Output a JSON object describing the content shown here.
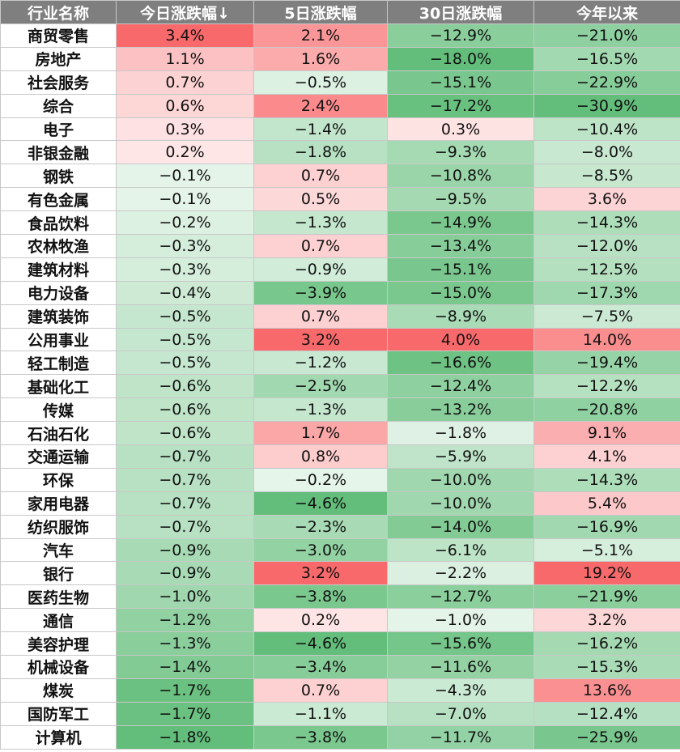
{
  "chart_data": {
    "type": "table",
    "columns": [
      "行业名称",
      "今日涨跌幅↓",
      "5日涨跌幅",
      "30日涨跌幅",
      "今年以来"
    ],
    "rows": [
      {
        "name": "商贸零售",
        "values": [
          "3.4%",
          "2.1%",
          "−12.9%",
          "−21.0%"
        ]
      },
      {
        "name": "房地产",
        "values": [
          "1.1%",
          "1.6%",
          "−18.0%",
          "−16.5%"
        ]
      },
      {
        "name": "社会服务",
        "values": [
          "0.7%",
          "−0.5%",
          "−15.1%",
          "−22.9%"
        ]
      },
      {
        "name": "综合",
        "values": [
          "0.6%",
          "2.4%",
          "−17.2%",
          "−30.9%"
        ]
      },
      {
        "name": "电子",
        "values": [
          "0.3%",
          "−1.4%",
          "0.3%",
          "−10.4%"
        ]
      },
      {
        "name": "非银金融",
        "values": [
          "0.2%",
          "−1.8%",
          "−9.3%",
          "−8.0%"
        ]
      },
      {
        "name": "钢铁",
        "values": [
          "−0.1%",
          "0.7%",
          "−10.8%",
          "−8.5%"
        ]
      },
      {
        "name": "有色金属",
        "values": [
          "−0.1%",
          "0.5%",
          "−9.5%",
          "3.6%"
        ]
      },
      {
        "name": "食品饮料",
        "values": [
          "−0.2%",
          "−1.3%",
          "−14.9%",
          "−14.3%"
        ]
      },
      {
        "name": "农林牧渔",
        "values": [
          "−0.3%",
          "0.7%",
          "−13.4%",
          "−12.0%"
        ]
      },
      {
        "name": "建筑材料",
        "values": [
          "−0.3%",
          "−0.9%",
          "−15.1%",
          "−12.5%"
        ]
      },
      {
        "name": "电力设备",
        "values": [
          "−0.4%",
          "−3.9%",
          "−15.0%",
          "−17.3%"
        ]
      },
      {
        "name": "建筑装饰",
        "values": [
          "−0.5%",
          "0.7%",
          "−8.9%",
          "−7.5%"
        ]
      },
      {
        "name": "公用事业",
        "values": [
          "−0.5%",
          "3.2%",
          "4.0%",
          "14.0%"
        ]
      },
      {
        "name": "轻工制造",
        "values": [
          "−0.5%",
          "−1.2%",
          "−16.6%",
          "−19.4%"
        ]
      },
      {
        "name": "基础化工",
        "values": [
          "−0.6%",
          "−2.5%",
          "−12.4%",
          "−12.2%"
        ]
      },
      {
        "name": "传媒",
        "values": [
          "−0.6%",
          "−1.3%",
          "−13.2%",
          "−20.8%"
        ]
      },
      {
        "name": "石油石化",
        "values": [
          "−0.6%",
          "1.7%",
          "−1.8%",
          "9.1%"
        ]
      },
      {
        "name": "交通运输",
        "values": [
          "−0.7%",
          "0.8%",
          "−5.9%",
          "4.1%"
        ]
      },
      {
        "name": "环保",
        "values": [
          "−0.7%",
          "−0.2%",
          "−10.0%",
          "−14.3%"
        ]
      },
      {
        "name": "家用电器",
        "values": [
          "−0.7%",
          "−4.6%",
          "−10.0%",
          "5.4%"
        ]
      },
      {
        "name": "纺织服饰",
        "values": [
          "−0.7%",
          "−2.3%",
          "−14.0%",
          "−16.9%"
        ]
      },
      {
        "name": "汽车",
        "values": [
          "−0.9%",
          "−3.0%",
          "−6.1%",
          "−5.1%"
        ]
      },
      {
        "name": "银行",
        "values": [
          "−0.9%",
          "3.2%",
          "−2.2%",
          "19.2%"
        ]
      },
      {
        "name": "医药生物",
        "values": [
          "−1.0%",
          "−3.8%",
          "−12.7%",
          "−21.9%"
        ]
      },
      {
        "name": "通信",
        "values": [
          "−1.2%",
          "0.2%",
          "−1.0%",
          "3.2%"
        ]
      },
      {
        "name": "美容护理",
        "values": [
          "−1.3%",
          "−4.6%",
          "−15.6%",
          "−16.2%"
        ]
      },
      {
        "name": "机械设备",
        "values": [
          "−1.4%",
          "−3.4%",
          "−11.6%",
          "−15.3%"
        ]
      },
      {
        "name": "煤炭",
        "values": [
          "−1.7%",
          "0.7%",
          "−4.3%",
          "13.6%"
        ]
      },
      {
        "name": "国防军工",
        "values": [
          "−1.7%",
          "−1.1%",
          "−7.0%",
          "−12.4%"
        ]
      },
      {
        "name": "计算机",
        "values": [
          "−1.8%",
          "−3.8%",
          "−11.7%",
          "−25.9%"
        ]
      }
    ],
    "colors": {
      "header_bg": "#7f7f7f",
      "header_text": "#ffffff",
      "positive": "#f8696b",
      "negative": "#63be7b",
      "neutral": "#ffffff"
    }
  }
}
